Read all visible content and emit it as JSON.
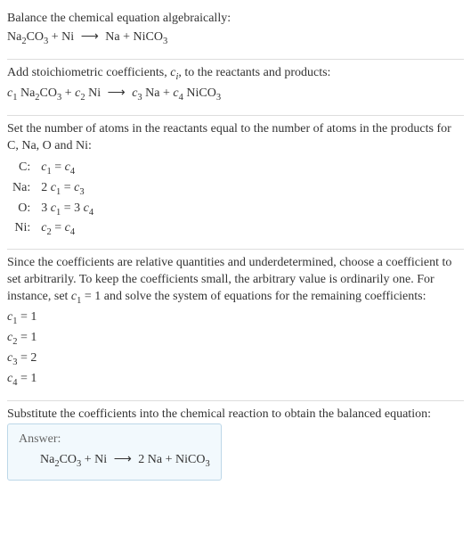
{
  "colors": {
    "text": "#333333",
    "rule": "#dddddd",
    "answer_border": "#bcd7e8",
    "answer_bg": "#f2f9fd",
    "answer_label": "#666666"
  },
  "section1": {
    "title": "Balance the chemical equation algebraically:",
    "eq": {
      "lhs1": "Na",
      "lhs1_sub": "2",
      "lhs2": "CO",
      "lhs2_sub": "3",
      "plus1": " + Ni",
      "arrow": "⟶",
      "rhs1": "Na + NiCO",
      "rhs1_sub": "3"
    }
  },
  "section2": {
    "title_a": "Add stoichiometric coefficients, ",
    "title_ci": "c",
    "title_ci_sub": "i",
    "title_b": ", to the reactants and products:",
    "eq": {
      "c1": "c",
      "c1_sub": "1",
      "sp1": " ",
      "r1a": "Na",
      "r1a_sub": "2",
      "r1b": "CO",
      "r1b_sub": "3",
      "plus1": " + ",
      "c2": "c",
      "c2_sub": "2",
      "sp2": " ",
      "r2": "Ni",
      "arrow": "⟶",
      "c3": "c",
      "c3_sub": "3",
      "sp3": " ",
      "p1": "Na",
      "plus2": " + ",
      "c4": "c",
      "c4_sub": "4",
      "sp4": " ",
      "p2a": "NiCO",
      "p2a_sub": "3"
    }
  },
  "section3": {
    "title": "Set the number of atoms in the reactants equal to the number of atoms in the products for C, Na, O and Ni:",
    "rows": [
      {
        "el": "C:",
        "l1": "c",
        "l1s": "1",
        "eq": " = ",
        "r1": "c",
        "r1s": "4",
        "pre": ""
      },
      {
        "el": "Na:",
        "l1": "c",
        "l1s": "1",
        "eq": " = ",
        "r1": "c",
        "r1s": "3",
        "pre": "2 "
      },
      {
        "el": "O:",
        "l1": "c",
        "l1s": "1",
        "eq": " = 3 ",
        "r1": "c",
        "r1s": "4",
        "pre": "3 "
      },
      {
        "el": "Ni:",
        "l1": "c",
        "l1s": "2",
        "eq": " = ",
        "r1": "c",
        "r1s": "4",
        "pre": ""
      }
    ]
  },
  "section4": {
    "para_a": "Since the coefficients are relative quantities and underdetermined, choose a coefficient to set arbitrarily. To keep the coefficients small, the arbitrary value is ordinarily one. For instance, set ",
    "para_ci": "c",
    "para_ci_sub": "1",
    "para_b": " = 1 and solve the system of equations for the remaining coefficients:",
    "lines": [
      {
        "c": "c",
        "cs": "1",
        "rest": " = 1"
      },
      {
        "c": "c",
        "cs": "2",
        "rest": " = 1"
      },
      {
        "c": "c",
        "cs": "3",
        "rest": " = 2"
      },
      {
        "c": "c",
        "cs": "4",
        "rest": " = 1"
      }
    ]
  },
  "section5": {
    "title": "Substitute the coefficients into the chemical reaction to obtain the balanced equation:",
    "answer_label": "Answer:",
    "eq": {
      "lhs1": "Na",
      "lhs1_sub": "2",
      "lhs2": "CO",
      "lhs2_sub": "3",
      "plus1": " + Ni",
      "arrow": "⟶",
      "rhs": "2 Na + NiCO",
      "rhs_sub": "3"
    }
  }
}
